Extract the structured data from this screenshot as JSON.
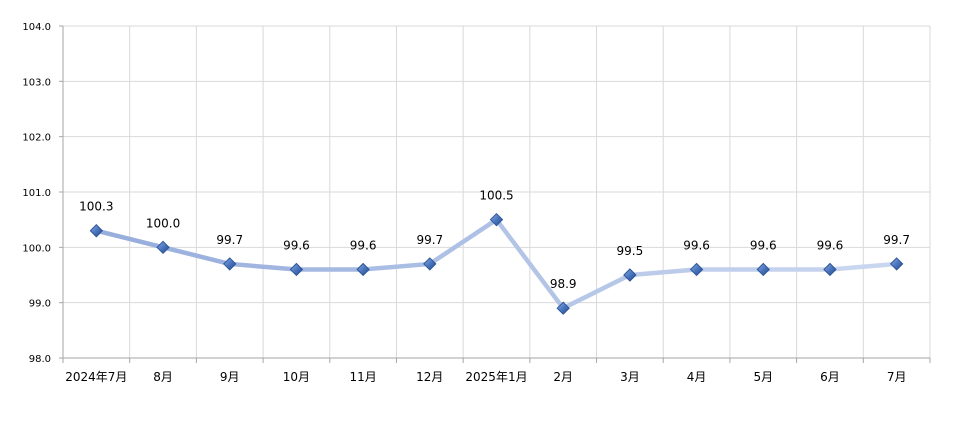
{
  "chart_data": {
    "type": "line",
    "title": "",
    "xlabel": "",
    "ylabel": "",
    "categories": [
      "2024年7月",
      "8月",
      "9月",
      "10月",
      "11月",
      "12月",
      "2025年1月",
      "2月",
      "3月",
      "4月",
      "5月",
      "6月",
      "7月"
    ],
    "series": [
      {
        "values": [
          100.3,
          100.0,
          99.7,
          99.6,
          99.6,
          99.7,
          100.5,
          98.9,
          99.5,
          99.6,
          99.6,
          99.6,
          99.7
        ]
      }
    ],
    "data_labels": [
      "100.3",
      "100.0",
      "99.7",
      "99.6",
      "99.6",
      "99.7",
      "100.5",
      "98.9",
      "99.5",
      "99.6",
      "99.6",
      "99.6",
      "99.7"
    ],
    "yticks": [
      "98.0",
      "99.0",
      "100.0",
      "101.0",
      "102.0",
      "103.0",
      "104.0"
    ],
    "ylim": [
      98.0,
      104.0
    ],
    "grid": true,
    "legend": "none",
    "colors": {
      "line_start": "#98aedd",
      "line_end": "#c9d6ef",
      "marker_fill": "#4a76bf",
      "marker_edge": "#2e5597",
      "grid": "#d9d9d9",
      "axis": "#a6a6a6"
    }
  }
}
